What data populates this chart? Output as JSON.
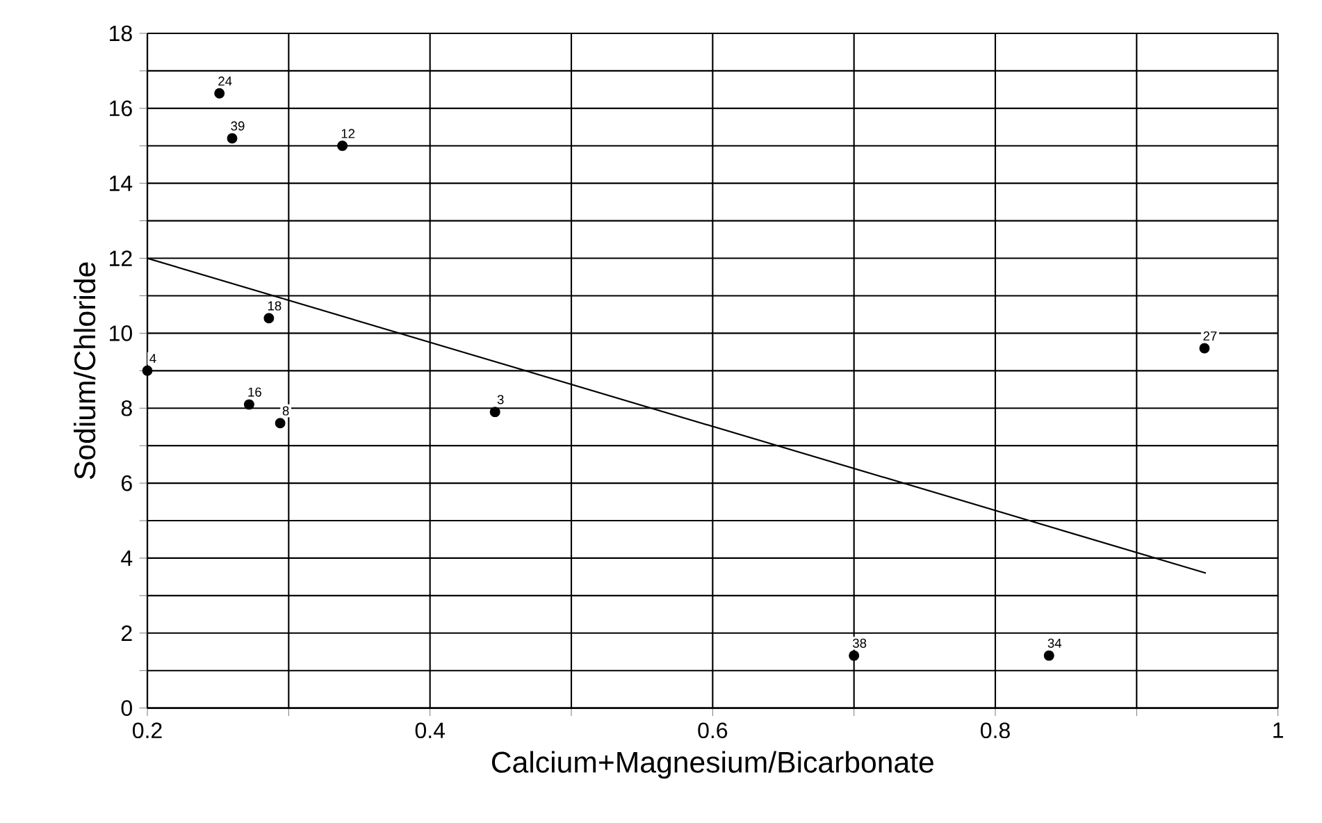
{
  "chart_data": {
    "type": "scatter",
    "xlabel": "Calcium+Magnesium/Bicarbonate",
    "ylabel": "Sodium/Chloride",
    "series": [
      {
        "color": "#000000",
        "marker": "circle",
        "x": [
          0.251,
          0.26,
          0.338,
          0.286,
          0.2,
          0.272,
          0.294,
          0.446,
          0.7,
          0.838,
          0.948
        ],
        "values": [
          16.4,
          15.2,
          15.0,
          10.4,
          9.0,
          8.1,
          7.6,
          7.9,
          1.4,
          1.4,
          9.6
        ]
      },
      {
        "type": "line",
        "color": "#000000",
        "marker": "none",
        "line_style": "solid",
        "x": [
          0.2,
          0.949
        ],
        "values": [
          12.0,
          3.6
        ]
      }
    ],
    "annotations": [
      {
        "text": "24",
        "x": 0.251,
        "y": 16.4
      },
      {
        "text": "39",
        "x": 0.26,
        "y": 15.2
      },
      {
        "text": "12",
        "x": 0.338,
        "y": 15.0
      },
      {
        "text": "18",
        "x": 0.286,
        "y": 10.4
      },
      {
        "text": "4",
        "x": 0.2,
        "y": 9.0
      },
      {
        "text": "16",
        "x": 0.272,
        "y": 8.1
      },
      {
        "text": "8",
        "x": 0.294,
        "y": 7.6
      },
      {
        "text": "3",
        "x": 0.446,
        "y": 7.9
      },
      {
        "text": "38",
        "x": 0.7,
        "y": 1.4
      },
      {
        "text": "34",
        "x": 0.838,
        "y": 1.4
      },
      {
        "text": "27",
        "x": 0.948,
        "y": 9.6
      }
    ],
    "xlim": [
      0.2,
      1.0
    ],
    "xticks": [
      0.2,
      {
        "value": 0.3,
        "label": null
      },
      0.4,
      {
        "value": 0.5,
        "label": null
      },
      0.6,
      {
        "value": 0.7,
        "label": null
      },
      0.8,
      {
        "value": 0.9,
        "label": null
      },
      1
    ],
    "ylim": [
      0,
      18
    ],
    "yticks": [
      0,
      {
        "value": 1,
        "label": null
      },
      2,
      {
        "value": 3,
        "label": null
      },
      4,
      {
        "value": 5,
        "label": null
      },
      6,
      {
        "value": 7,
        "label": null
      },
      8,
      {
        "value": 9,
        "label": null
      },
      10,
      {
        "value": 11,
        "label": null
      },
      12,
      {
        "value": 13,
        "label": null
      },
      14,
      {
        "value": 15,
        "label": null
      },
      16,
      {
        "value": 17,
        "label": null
      },
      18
    ],
    "grid": true
  }
}
